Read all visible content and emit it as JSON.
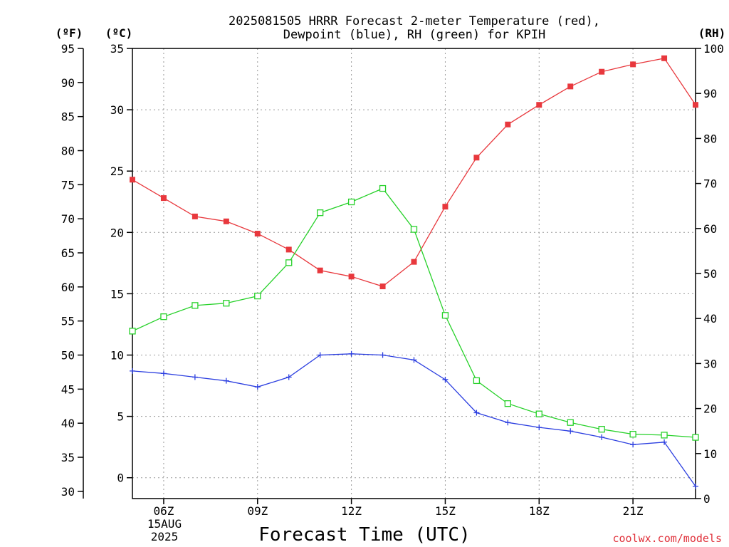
{
  "chart_data": {
    "type": "line",
    "title_line1": "2025081505 HRRR Forecast 2-meter Temperature (red),",
    "title_line2": "Dewpoint (blue), RH (green) for KPIH",
    "xlabel": "Forecast Time (UTC)",
    "credit": "coolwx.com/models",
    "unit_f": "(ºF)",
    "unit_c": "(ºC)",
    "unit_rh": "(RH)",
    "date_label_1": "15AUG",
    "date_label_2": "2025",
    "x_hours": [
      5,
      6,
      7,
      8,
      9,
      10,
      11,
      12,
      13,
      14,
      15,
      16,
      17,
      18,
      19,
      20,
      21,
      22,
      23
    ],
    "x_range": [
      5,
      23
    ],
    "x_ticks": [
      {
        "hour": 6,
        "label": "06Z"
      },
      {
        "hour": 9,
        "label": "09Z"
      },
      {
        "hour": 12,
        "label": "12Z"
      },
      {
        "hour": 15,
        "label": "15Z"
      },
      {
        "hour": 18,
        "label": "18Z"
      },
      {
        "hour": 21,
        "label": "21Z"
      }
    ],
    "ylim_c": [
      -1.7,
      35
    ],
    "ylim_rh": [
      0,
      100
    ],
    "yticks_c": [
      "0",
      "5",
      "10",
      "15",
      "20",
      "25",
      "30",
      "35"
    ],
    "yticks_f": [
      "30",
      "35",
      "40",
      "45",
      "50",
      "55",
      "60",
      "65",
      "70",
      "75",
      "80",
      "85",
      "90",
      "95"
    ],
    "yticks_rh": [
      "0",
      "10",
      "20",
      "30",
      "40",
      "50",
      "60",
      "70",
      "80",
      "90",
      "100"
    ],
    "grid": true,
    "colors": {
      "temperature": "#e8383d",
      "dewpoint": "#2c3fe0",
      "rh": "#27d12a"
    },
    "series": [
      {
        "key": "temperature",
        "axis": "c",
        "values": [
          24.3,
          22.8,
          21.3,
          20.9,
          19.9,
          18.6,
          16.9,
          16.4,
          15.6,
          17.6,
          22.1,
          26.1,
          28.8,
          30.4,
          31.9,
          33.1,
          33.7,
          34.2,
          30.4
        ]
      },
      {
        "key": "dewpoint",
        "axis": "c",
        "values": [
          8.7,
          8.5,
          8.2,
          7.9,
          7.4,
          8.2,
          10.0,
          10.1,
          10.0,
          9.6,
          8.0,
          5.3,
          4.5,
          4.1,
          3.8,
          3.3,
          2.7,
          2.9,
          -0.7
        ]
      },
      {
        "key": "rh",
        "axis": "rh",
        "values": [
          37.2,
          40.4,
          42.9,
          43.4,
          45.0,
          52.4,
          63.5,
          65.9,
          68.9,
          59.8,
          40.7,
          26.2,
          21.1,
          18.8,
          16.9,
          15.4,
          14.3,
          14.1,
          13.6
        ]
      }
    ]
  }
}
